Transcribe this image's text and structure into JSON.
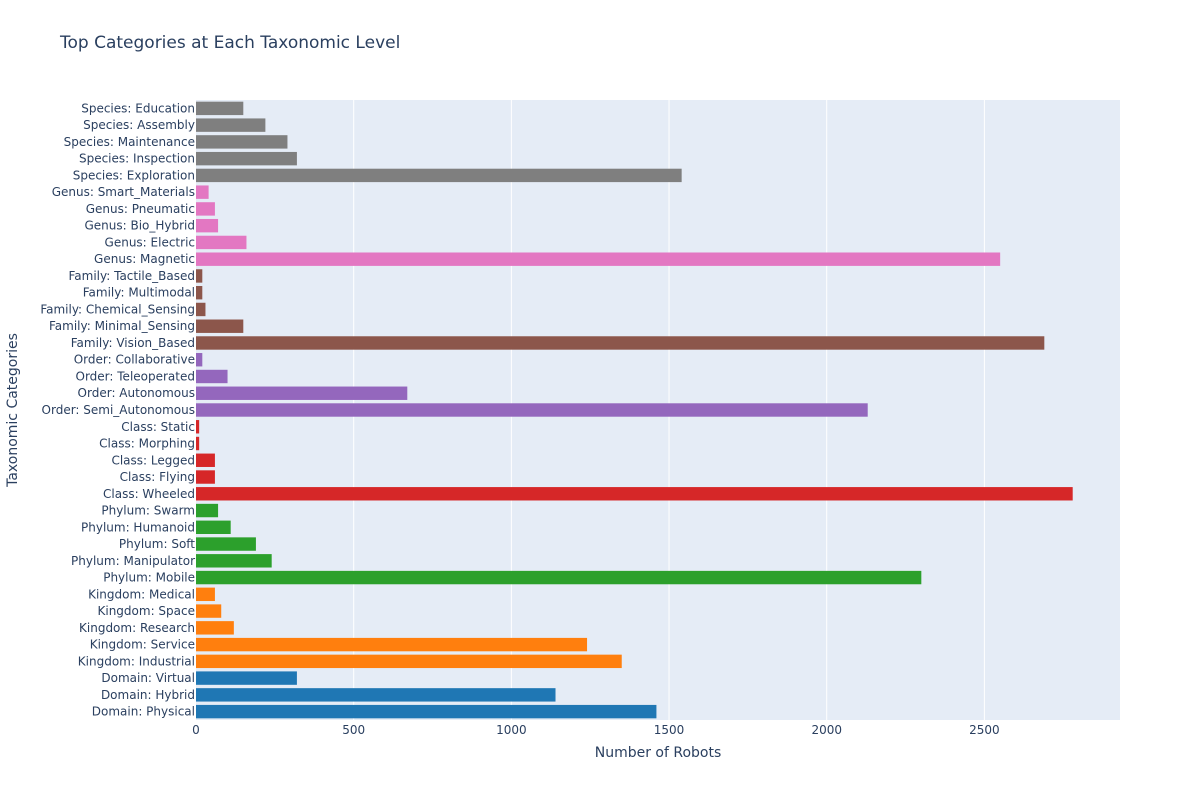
{
  "chart_data": {
    "type": "bar",
    "orientation": "horizontal",
    "title": "Top Categories at Each Taxonomic Level",
    "xlabel": "Number of Robots",
    "ylabel": "Taxonomic Categories",
    "xlim": [
      0,
      2930
    ],
    "xticks": [
      0,
      500,
      1000,
      1500,
      2000,
      2500
    ],
    "grid": true,
    "legend": "none",
    "categories": [
      "Domain: Physical",
      "Domain: Hybrid",
      "Domain: Virtual",
      "Kingdom: Industrial",
      "Kingdom: Service",
      "Kingdom: Research",
      "Kingdom: Space",
      "Kingdom: Medical",
      "Phylum: Mobile",
      "Phylum: Manipulator",
      "Phylum: Soft",
      "Phylum: Humanoid",
      "Phylum: Swarm",
      "Class: Wheeled",
      "Class: Flying",
      "Class: Legged",
      "Class: Morphing",
      "Class: Static",
      "Order: Semi_Autonomous",
      "Order: Autonomous",
      "Order: Teleoperated",
      "Order: Collaborative",
      "Family: Vision_Based",
      "Family: Minimal_Sensing",
      "Family: Chemical_Sensing",
      "Family: Multimodal",
      "Family: Tactile_Based",
      "Genus: Magnetic",
      "Genus: Electric",
      "Genus: Bio_Hybrid",
      "Genus: Pneumatic",
      "Genus: Smart_Materials",
      "Species: Exploration",
      "Species: Inspection",
      "Species: Maintenance",
      "Species: Assembly",
      "Species: Education"
    ],
    "values": [
      1460,
      1140,
      320,
      1350,
      1240,
      120,
      80,
      60,
      2300,
      240,
      190,
      110,
      70,
      2780,
      60,
      60,
      10,
      10,
      2130,
      670,
      100,
      20,
      2690,
      150,
      30,
      20,
      20,
      2550,
      160,
      70,
      60,
      40,
      1540,
      320,
      290,
      220,
      150
    ],
    "bar_colors": [
      "#1f77b4",
      "#1f77b4",
      "#1f77b4",
      "#ff7f0e",
      "#ff7f0e",
      "#ff7f0e",
      "#ff7f0e",
      "#ff7f0e",
      "#2ca02c",
      "#2ca02c",
      "#2ca02c",
      "#2ca02c",
      "#2ca02c",
      "#d62728",
      "#d62728",
      "#d62728",
      "#d62728",
      "#d62728",
      "#9467bd",
      "#9467bd",
      "#9467bd",
      "#9467bd",
      "#8c564b",
      "#8c564b",
      "#8c564b",
      "#8c564b",
      "#8c564b",
      "#e377c2",
      "#e377c2",
      "#e377c2",
      "#e377c2",
      "#e377c2",
      "#7f7f7f",
      "#7f7f7f",
      "#7f7f7f",
      "#7f7f7f",
      "#7f7f7f"
    ],
    "plot_background": "#e5ecf6",
    "grid_color": "#ffffff",
    "text_color": "#2a3f5f"
  }
}
